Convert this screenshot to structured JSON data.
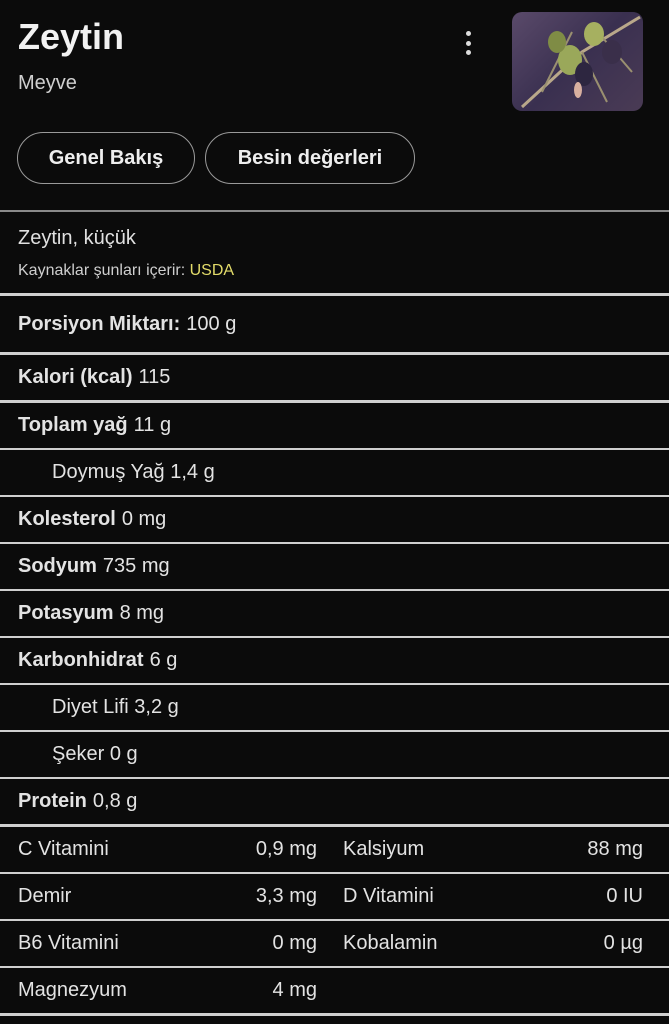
{
  "header": {
    "title": "Zeytin",
    "subtitle": "Meyve",
    "menu_icon": "more-vert-icon"
  },
  "tabs": [
    {
      "label": "Genel Bakış"
    },
    {
      "label": "Besin değerleri"
    }
  ],
  "source": {
    "name": "Zeytin, küçük",
    "prefix": "Kaynaklar şunları içerir:",
    "link": "USDA",
    "link_color": "#e3dc6a"
  },
  "serving": {
    "label": "Porsiyon Miktarı:",
    "value": "100 g"
  },
  "calories": {
    "label": "Kalori (kcal)",
    "value": "115"
  },
  "nutrients": [
    {
      "label": "Toplam yağ",
      "value": "11 g",
      "indent": false
    },
    {
      "label": "Doymuş Yağ",
      "value": "1,4 g",
      "indent": true
    },
    {
      "label": "Kolesterol",
      "value": "0 mg",
      "indent": false
    },
    {
      "label": "Sodyum",
      "value": "735 mg",
      "indent": false
    },
    {
      "label": "Potasyum",
      "value": "8 mg",
      "indent": false
    },
    {
      "label": "Karbonhidrat",
      "value": "6 g",
      "indent": false
    },
    {
      "label": "Diyet Lifi",
      "value": "3,2 g",
      "indent": true
    },
    {
      "label": "Şeker",
      "value": "0 g",
      "indent": true
    },
    {
      "label": "Protein",
      "value": "0,8 g",
      "indent": false
    }
  ],
  "vitamins": [
    [
      {
        "label": "C Vitamini",
        "value": "0,9 mg"
      },
      {
        "label": "Kalsiyum",
        "value": "88 mg"
      }
    ],
    [
      {
        "label": "Demir",
        "value": "3,3 mg"
      },
      {
        "label": "D Vitamini",
        "value": "0 IU"
      }
    ],
    [
      {
        "label": "B6 Vitamini",
        "value": "0 mg"
      },
      {
        "label": "Kobalamin",
        "value": "0 µg"
      }
    ],
    [
      {
        "label": "Magnezyum",
        "value": "4 mg"
      }
    ]
  ]
}
